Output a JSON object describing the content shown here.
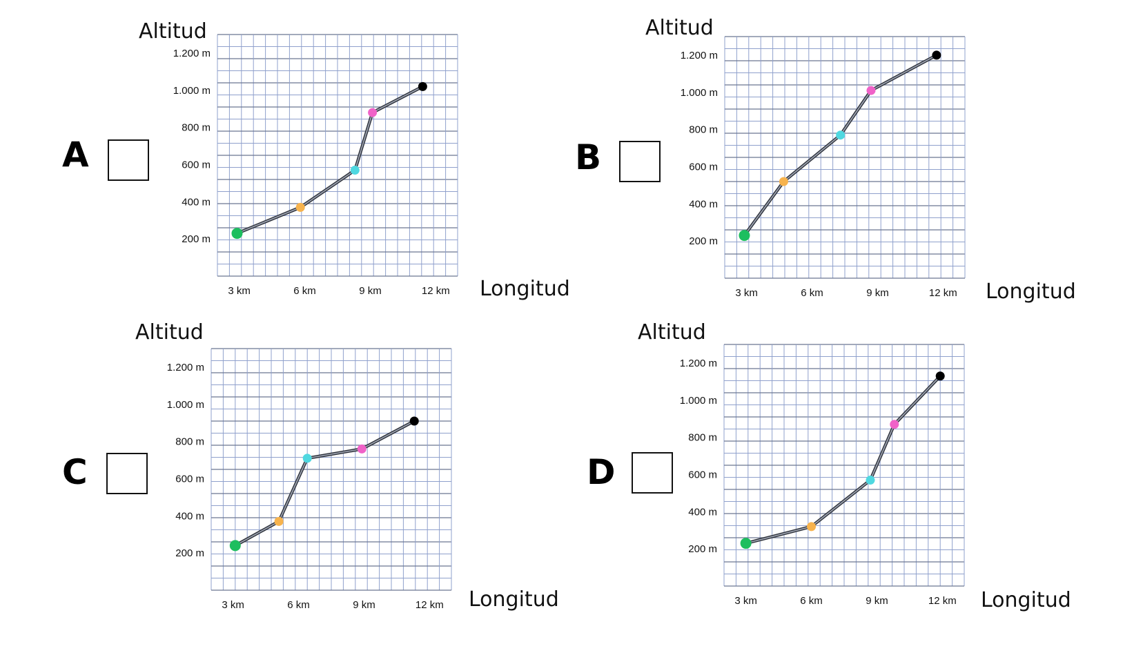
{
  "options": [
    {
      "letter": "A",
      "chart_data": {
        "type": "line",
        "ylabel": "Altitud",
        "xlabel": "Longitud",
        "x_ticks": [
          "3 km",
          "6 km",
          "9 km",
          "12 km"
        ],
        "y_ticks": [
          "200 m",
          "400 m",
          "600 m",
          "800 m",
          "1.000 m",
          "1.200 m"
        ],
        "xlim": [
          2,
          13
        ],
        "ylim": [
          0,
          1300
        ],
        "grid": true,
        "points": [
          {
            "x": 2.9,
            "y": 230,
            "color": "#1dbe5f"
          },
          {
            "x": 5.8,
            "y": 370,
            "color": "#f7b34d"
          },
          {
            "x": 8.3,
            "y": 570,
            "color": "#4fd8e0"
          },
          {
            "x": 9.1,
            "y": 880,
            "color": "#f062c8"
          },
          {
            "x": 11.4,
            "y": 1020,
            "color": "#000000"
          }
        ]
      }
    },
    {
      "letter": "B",
      "chart_data": {
        "type": "line",
        "ylabel": "Altitud",
        "xlabel": "Longitud",
        "x_ticks": [
          "3 km",
          "6 km",
          "9 km",
          "12 km"
        ],
        "y_ticks": [
          "200 m",
          "400 m",
          "600 m",
          "800 m",
          "1.000 m",
          "1.200 m"
        ],
        "xlim": [
          2,
          13
        ],
        "ylim": [
          0,
          1300
        ],
        "grid": true,
        "points": [
          {
            "x": 2.9,
            "y": 230,
            "color": "#1dbe5f"
          },
          {
            "x": 4.7,
            "y": 520,
            "color": "#f7b34d"
          },
          {
            "x": 7.3,
            "y": 770,
            "color": "#4fd8e0"
          },
          {
            "x": 8.7,
            "y": 1010,
            "color": "#f062c8"
          },
          {
            "x": 11.7,
            "y": 1200,
            "color": "#000000"
          }
        ]
      }
    },
    {
      "letter": "C",
      "chart_data": {
        "type": "line",
        "ylabel": "Altitud",
        "xlabel": "Longitud",
        "x_ticks": [
          "3 km",
          "6 km",
          "9 km",
          "12 km"
        ],
        "y_ticks": [
          "200 m",
          "400 m",
          "600 m",
          "800 m",
          "1.000 m",
          "1.200 m"
        ],
        "xlim": [
          2,
          13
        ],
        "ylim": [
          0,
          1300
        ],
        "grid": true,
        "points": [
          {
            "x": 3.1,
            "y": 240,
            "color": "#1dbe5f"
          },
          {
            "x": 5.1,
            "y": 370,
            "color": "#f7b34d"
          },
          {
            "x": 6.4,
            "y": 710,
            "color": "#4fd8e0"
          },
          {
            "x": 8.9,
            "y": 760,
            "color": "#f062c8"
          },
          {
            "x": 11.3,
            "y": 910,
            "color": "#000000"
          }
        ]
      }
    },
    {
      "letter": "D",
      "chart_data": {
        "type": "line",
        "ylabel": "Altitud",
        "xlabel": "Longitud",
        "x_ticks": [
          "3 km",
          "6 km",
          "9 km",
          "12 km"
        ],
        "y_ticks": [
          "200 m",
          "400 m",
          "600 m",
          "800 m",
          "1.000 m",
          "1.200 m"
        ],
        "xlim": [
          2,
          13
        ],
        "ylim": [
          0,
          1300
        ],
        "grid": true,
        "points": [
          {
            "x": 3.0,
            "y": 230,
            "color": "#1dbe5f"
          },
          {
            "x": 6.0,
            "y": 320,
            "color": "#f7b34d"
          },
          {
            "x": 8.7,
            "y": 570,
            "color": "#4fd8e0"
          },
          {
            "x": 9.8,
            "y": 870,
            "color": "#f062c8"
          },
          {
            "x": 11.9,
            "y": 1130,
            "color": "#000000"
          }
        ]
      }
    }
  ],
  "colors": {
    "grid_line": "#8fa0cc",
    "grid_major": "#6b7691",
    "series_line": "#5c6270",
    "line_outline": "#2b2f38"
  }
}
